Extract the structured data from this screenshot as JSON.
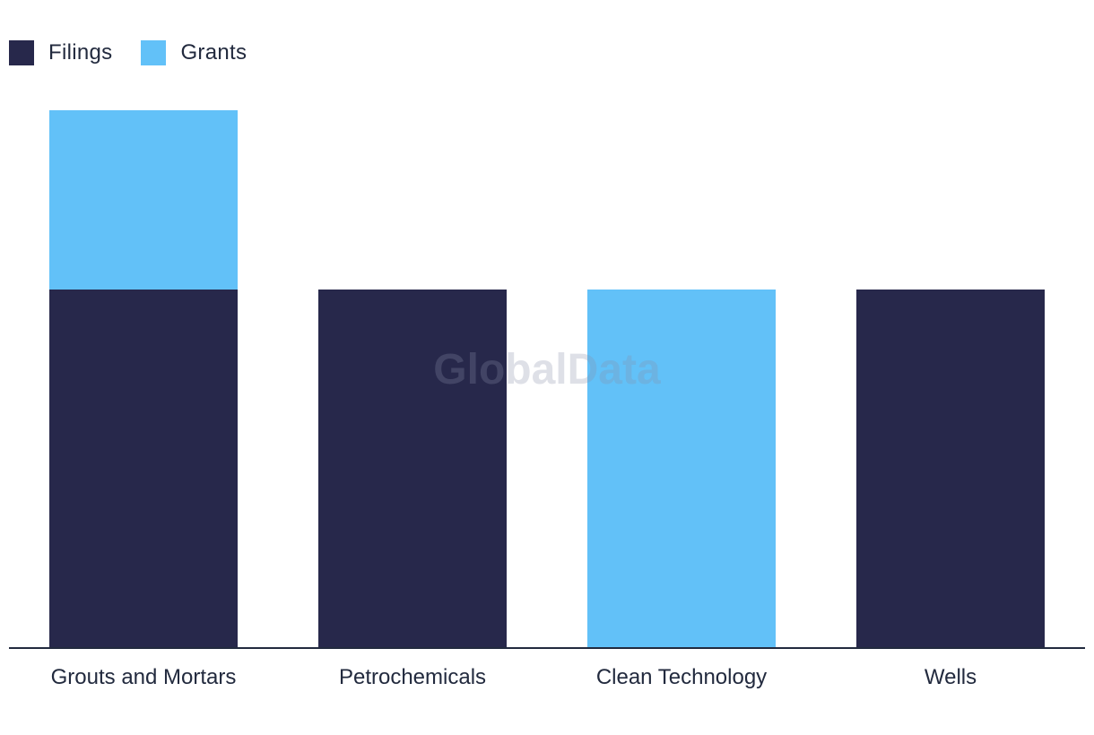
{
  "legend": {
    "items": [
      {
        "label": "Filings",
        "color": "#27284b"
      },
      {
        "label": "Grants",
        "color": "#62c1f8"
      }
    ]
  },
  "watermark": "GlobalData",
  "chart_data": {
    "type": "bar",
    "stacked": true,
    "categories": [
      "Grouts and Mortars",
      "Petrochemicals",
      "Clean Technology",
      "Wells"
    ],
    "series": [
      {
        "name": "Filings",
        "color": "#27284b",
        "values": [
          2,
          2,
          0,
          2
        ]
      },
      {
        "name": "Grants",
        "color": "#62c1f8",
        "values": [
          1,
          0,
          2,
          0
        ]
      }
    ],
    "ylim": [
      0,
      3
    ],
    "grid": false,
    "legend_position": "top-left",
    "title": "",
    "xlabel": "",
    "ylabel": ""
  }
}
